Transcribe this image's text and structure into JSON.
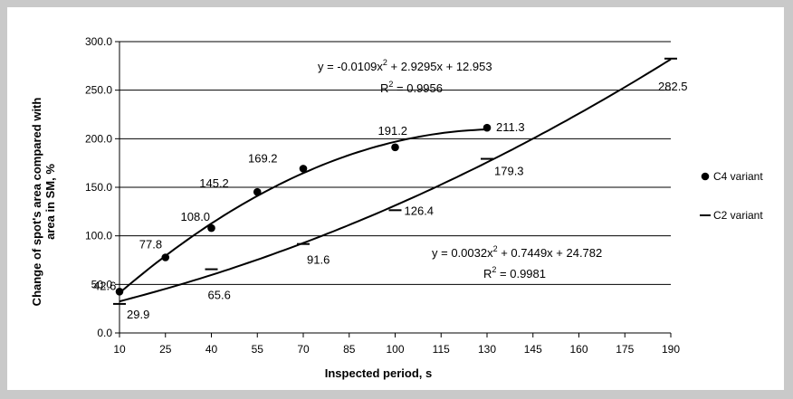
{
  "chart_data": {
    "type": "scatter",
    "xlabel": "Inspected period, s",
    "ylabel": "Change of spot's area compared with area in SM, %",
    "xlim": [
      10,
      190
    ],
    "ylim": [
      0,
      300
    ],
    "x_ticks": [
      "10",
      "25",
      "40",
      "55",
      "70",
      "85",
      "100",
      "115",
      "130",
      "145",
      "160",
      "175",
      "190"
    ],
    "y_ticks": [
      "0.0",
      "50.0",
      "100.0",
      "150.0",
      "200.0",
      "250.0",
      "300.0"
    ],
    "grid": "horizontal",
    "legend_position": "right",
    "series": [
      {
        "name": "C4 variant",
        "marker": "circle",
        "x": [
          10,
          25,
          40,
          55,
          70,
          100,
          130
        ],
        "values": [
          42.6,
          77.8,
          108.0,
          145.2,
          169.2,
          191.2,
          211.3
        ],
        "labels": [
          "42.6",
          "77.8",
          "108.0",
          "145.2",
          "169.2",
          "191.2",
          "211.3"
        ],
        "trend": {
          "a": -0.0109,
          "b": 2.9295,
          "c": 12.953,
          "x_range": [
            10,
            130
          ]
        },
        "equation": "y = -0.0109x",
        "equation_sup": "2",
        "equation_tail": " + 2.9295x + 12.953",
        "r2_prefix": "R",
        "r2_sup": "2",
        "r2_tail": " = 0.9956"
      },
      {
        "name": "C2 variant",
        "marker": "dash",
        "x": [
          10,
          40,
          70,
          100,
          130,
          190
        ],
        "values": [
          29.9,
          65.6,
          91.6,
          126.4,
          179.3,
          282.5
        ],
        "labels": [
          "29.9",
          "65.6",
          "91.6",
          "126.4",
          "179.3",
          "282.5"
        ],
        "trend": {
          "a": 0.0032,
          "b": 0.7449,
          "c": 24.782,
          "x_range": [
            10,
            190
          ]
        },
        "equation": "y = 0.0032x",
        "equation_sup": "2",
        "equation_tail": " + 0.7449x + 24.782",
        "r2_prefix": "R",
        "r2_sup": "2",
        "r2_tail": " = 0.9981"
      }
    ],
    "colors": {
      "marker": "#000000",
      "grid": "#000000",
      "background": "#ffffff",
      "border": "#c9c9c9"
    }
  }
}
